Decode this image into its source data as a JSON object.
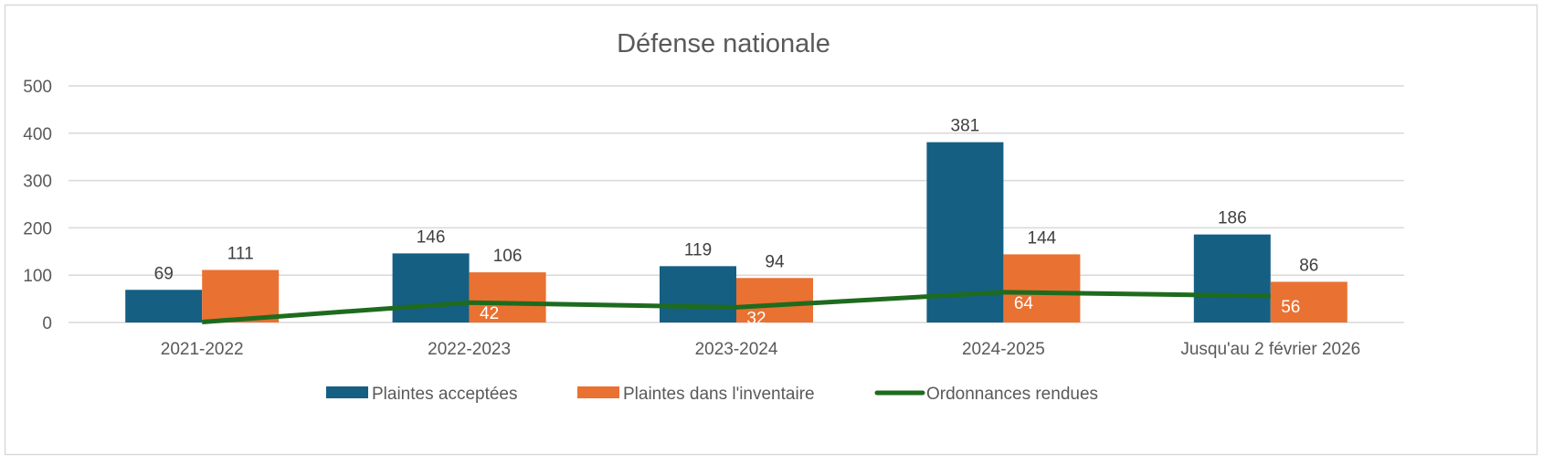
{
  "chart_data": {
    "type": "bar+line",
    "title": "Défense nationale",
    "xlabel": "",
    "ylabel": "",
    "ylim": [
      0,
      500
    ],
    "yticks": [
      0,
      100,
      200,
      300,
      400,
      500
    ],
    "grid": true,
    "legend_position": "bottom",
    "categories": [
      "2021-2022",
      "2022-2023",
      "2023-2024",
      "2024-2025",
      "Jusqu'au 2 février 2026"
    ],
    "series": [
      {
        "name": "Plaintes acceptées",
        "type": "bar",
        "color": "#155F83",
        "values": [
          69,
          146,
          119,
          381,
          186
        ]
      },
      {
        "name": "Plaintes dans l'inventaire",
        "type": "bar",
        "color": "#E97132",
        "values": [
          111,
          106,
          94,
          144,
          86
        ]
      },
      {
        "name": "Ordonnances rendues",
        "type": "line",
        "color": "#1E6B1E",
        "values": [
          1,
          42,
          32,
          64,
          56
        ]
      }
    ]
  }
}
